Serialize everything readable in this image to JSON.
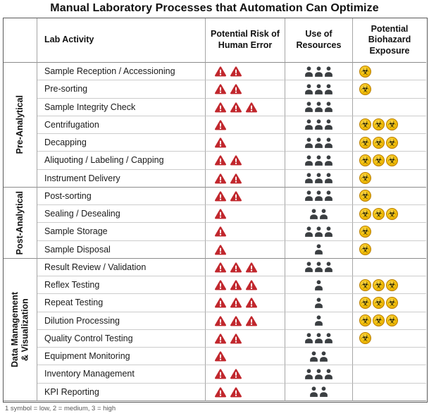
{
  "title": "Manual Laboratory Processes that Automation Can Optimize",
  "legend_note": "1 symbol = low, 2 = medium, 3 = high",
  "colors": {
    "risk_symbol": "#c1272d",
    "resource_symbol": "#3b3f42",
    "biohazard_symbol_fill": "#f2be06",
    "biohazard_symbol_rim": "#b97f00",
    "outer_border": "#595959",
    "inner_border": "#a6a6a6"
  },
  "symbols": {
    "risk": "warning-triangle-icon",
    "resources": "person-icon",
    "biohazard": "biohazard-icon"
  },
  "chart_data": {
    "type": "table",
    "title": "Manual Laboratory Processes that Automation Can Optimize",
    "columns": [
      "Lab Activity",
      "Potential Risk of Human Error",
      "Use of Resources",
      "Potential Biohazard Exposure"
    ],
    "symbol_scale": "1 symbol = low, 2 = medium, 3 = high",
    "groups": [
      {
        "label": "Pre-Analytical",
        "rows": [
          {
            "activity": "Sample Reception / Accessioning",
            "risk": 2,
            "resources": 3,
            "biohazard": 1
          },
          {
            "activity": "Pre-sorting",
            "risk": 2,
            "resources": 3,
            "biohazard": 1
          },
          {
            "activity": "Sample Integrity Check",
            "risk": 3,
            "resources": 3,
            "biohazard": 0
          },
          {
            "activity": "Centrifugation",
            "risk": 1,
            "resources": 3,
            "biohazard": 3
          },
          {
            "activity": "Decapping",
            "risk": 1,
            "resources": 3,
            "biohazard": 3
          },
          {
            "activity": "Aliquoting / Labeling / Capping",
            "risk": 2,
            "resources": 3,
            "biohazard": 3
          },
          {
            "activity": "Instrument Delivery",
            "risk": 2,
            "resources": 3,
            "biohazard": 1
          }
        ]
      },
      {
        "label": "Post-Analytical",
        "rows": [
          {
            "activity": "Post-sorting",
            "risk": 2,
            "resources": 3,
            "biohazard": 1
          },
          {
            "activity": "Sealing / Desealing",
            "risk": 1,
            "resources": 2,
            "biohazard": 3
          },
          {
            "activity": "Sample Storage",
            "risk": 1,
            "resources": 3,
            "biohazard": 1
          },
          {
            "activity": "Sample Disposal",
            "risk": 1,
            "resources": 1,
            "biohazard": 1
          }
        ]
      },
      {
        "label": "Data Management\n& Visualization",
        "rows": [
          {
            "activity": "Result Review / Validation",
            "risk": 3,
            "resources": 3,
            "biohazard": 0
          },
          {
            "activity": "Reflex Testing",
            "risk": 3,
            "resources": 1,
            "biohazard": 3
          },
          {
            "activity": "Repeat Testing",
            "risk": 3,
            "resources": 1,
            "biohazard": 3
          },
          {
            "activity": "Dilution Processing",
            "risk": 3,
            "resources": 1,
            "biohazard": 3
          },
          {
            "activity": "Quality Control Testing",
            "risk": 2,
            "resources": 3,
            "biohazard": 1
          },
          {
            "activity": "Equipment Monitoring",
            "risk": 1,
            "resources": 2,
            "biohazard": 0
          },
          {
            "activity": "Inventory Management",
            "risk": 2,
            "resources": 3,
            "biohazard": 0
          },
          {
            "activity": "KPI Reporting",
            "risk": 2,
            "resources": 2,
            "biohazard": 0
          }
        ]
      }
    ]
  }
}
